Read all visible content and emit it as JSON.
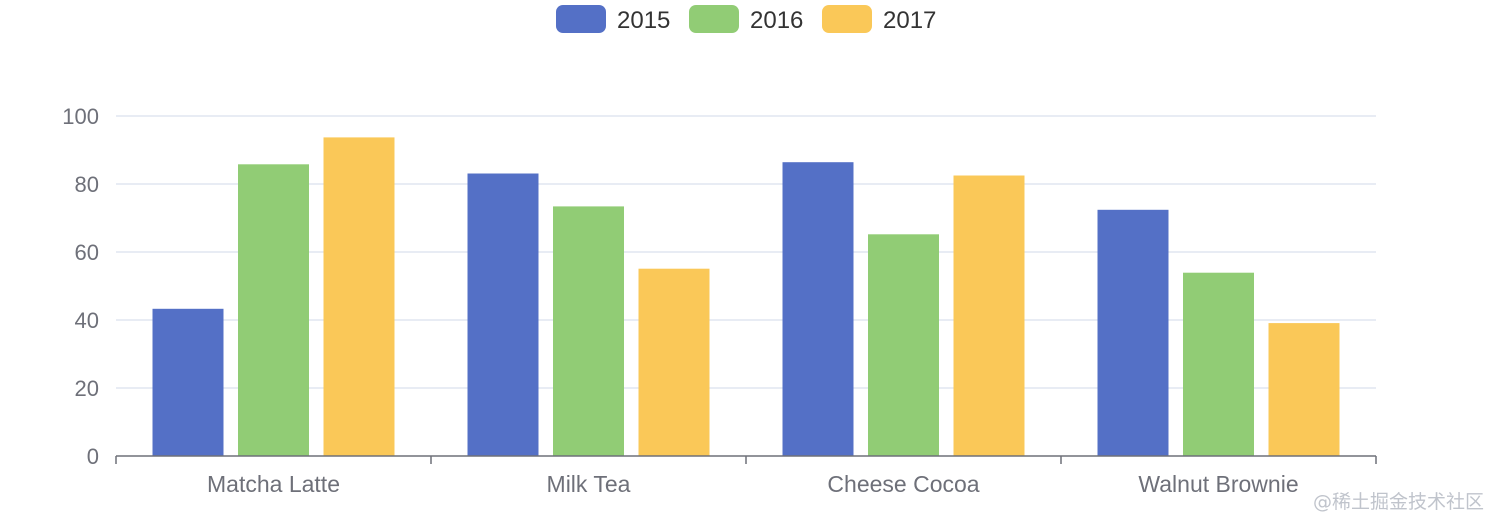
{
  "chart_data": {
    "type": "bar",
    "categories": [
      "Matcha Latte",
      "Milk Tea",
      "Cheese Cocoa",
      "Walnut Brownie"
    ],
    "series": [
      {
        "name": "2015",
        "color": "#5470c6",
        "values": [
          43.3,
          83.1,
          86.4,
          72.4
        ]
      },
      {
        "name": "2016",
        "color": "#91cc75",
        "values": [
          85.8,
          73.4,
          65.2,
          53.9
        ]
      },
      {
        "name": "2017",
        "color": "#fac858",
        "values": [
          93.7,
          55.1,
          82.5,
          39.1
        ]
      }
    ],
    "ylim": [
      0,
      100
    ],
    "yticks": [
      0,
      20,
      40,
      60,
      80,
      100
    ],
    "grid": true,
    "legend_position": "top-center"
  },
  "watermark": "@稀土掘金技术社区"
}
